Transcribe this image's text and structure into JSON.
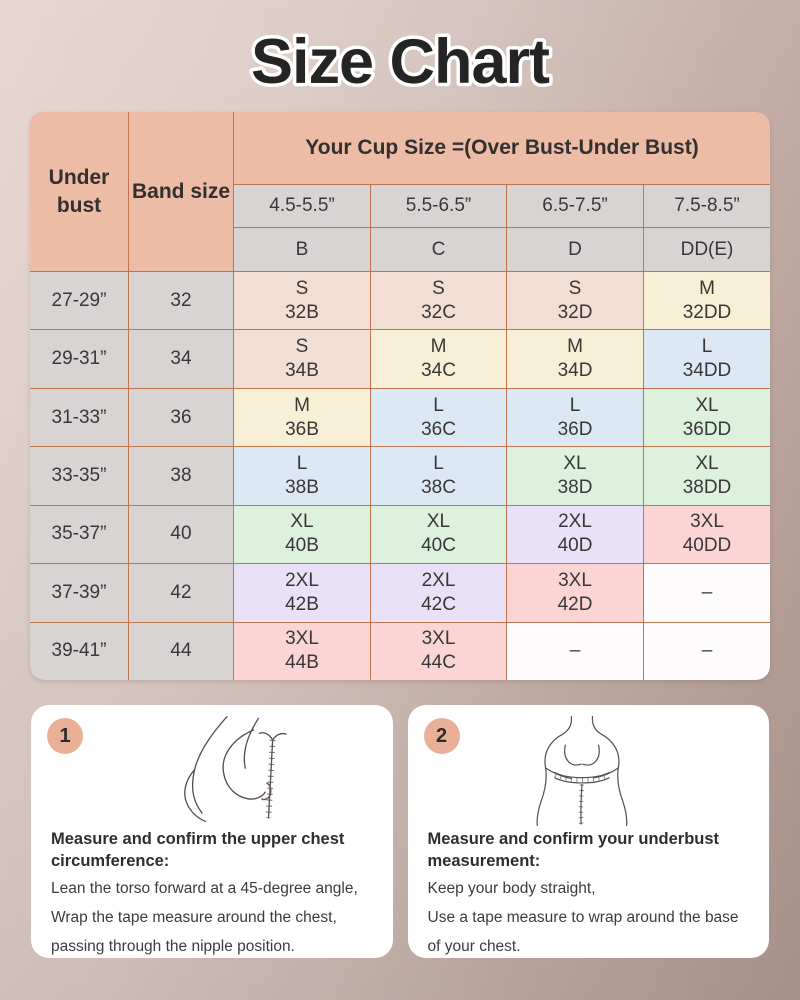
{
  "title": "Size Chart",
  "palette": {
    "header": "#edbca6",
    "gray": "#d7d4d3",
    "pink": "#f3ded4",
    "cream": "#f8efd7",
    "blue": "#dde8f5",
    "green": "#def1dd",
    "purple": "#e8e1f8",
    "red": "#fbd5d3",
    "empty": "#fdfbfb",
    "border": "#c1754e",
    "badge": "#e9b097",
    "card": "#ffffff",
    "title_color": "#242424"
  },
  "table": {
    "under_bust_header": "Under bust",
    "band_size_header": "Band size",
    "cup_header": "Your Cup Size =(Over Bust-Under Bust)",
    "bust_ranges": [
      "4.5-5.5”",
      "5.5-6.5”",
      "6.5-7.5”",
      "7.5-8.5”"
    ],
    "cup_letters": [
      "B",
      "C",
      "D",
      "DD(E)"
    ],
    "empty_mark": "–",
    "rows": [
      {
        "under_bust": "27-29”",
        "band_size": "32",
        "cells": [
          {
            "size": "S",
            "sku": "32B",
            "tone": "pink"
          },
          {
            "size": "S",
            "sku": "32C",
            "tone": "pink"
          },
          {
            "size": "S",
            "sku": "32D",
            "tone": "pink"
          },
          {
            "size": "M",
            "sku": "32DD",
            "tone": "cream"
          }
        ]
      },
      {
        "under_bust": "29-31”",
        "band_size": "34",
        "cells": [
          {
            "size": "S",
            "sku": "34B",
            "tone": "pink"
          },
          {
            "size": "M",
            "sku": "34C",
            "tone": "cream"
          },
          {
            "size": "M",
            "sku": "34D",
            "tone": "cream"
          },
          {
            "size": "L",
            "sku": "34DD",
            "tone": "blue"
          }
        ]
      },
      {
        "under_bust": "31-33”",
        "band_size": "36",
        "cells": [
          {
            "size": "M",
            "sku": "36B",
            "tone": "cream"
          },
          {
            "size": "L",
            "sku": "36C",
            "tone": "blue"
          },
          {
            "size": "L",
            "sku": "36D",
            "tone": "blue"
          },
          {
            "size": "XL",
            "sku": "36DD",
            "tone": "green"
          }
        ]
      },
      {
        "under_bust": "33-35”",
        "band_size": "38",
        "cells": [
          {
            "size": "L",
            "sku": "38B",
            "tone": "blue"
          },
          {
            "size": "L",
            "sku": "38C",
            "tone": "blue"
          },
          {
            "size": "XL",
            "sku": "38D",
            "tone": "green"
          },
          {
            "size": "XL",
            "sku": "38DD",
            "tone": "green"
          }
        ]
      },
      {
        "under_bust": "35-37”",
        "band_size": "40",
        "cells": [
          {
            "size": "XL",
            "sku": "40B",
            "tone": "green"
          },
          {
            "size": "XL",
            "sku": "40C",
            "tone": "green"
          },
          {
            "size": "2XL",
            "sku": "40D",
            "tone": "purple"
          },
          {
            "size": "3XL",
            "sku": "40DD",
            "tone": "red"
          }
        ]
      },
      {
        "under_bust": "37-39”",
        "band_size": "42",
        "cells": [
          {
            "size": "2XL",
            "sku": "42B",
            "tone": "purple"
          },
          {
            "size": "2XL",
            "sku": "42C",
            "tone": "purple"
          },
          {
            "size": "3XL",
            "sku": "42D",
            "tone": "red"
          },
          {
            "empty": true,
            "tone": "empty"
          }
        ]
      },
      {
        "under_bust": "39-41”",
        "band_size": "44",
        "cells": [
          {
            "size": "3XL",
            "sku": "44B",
            "tone": "red"
          },
          {
            "size": "3XL",
            "sku": "44C",
            "tone": "red"
          },
          {
            "empty": true,
            "tone": "empty"
          },
          {
            "empty": true,
            "tone": "empty"
          }
        ]
      }
    ]
  },
  "steps": [
    {
      "number": "1",
      "heading": "Measure and confirm the upper chest circumference:",
      "lines": [
        "Lean the torso forward at a 45-degree angle,",
        "Wrap the tape measure around the chest,",
        "passing through the nipple position."
      ]
    },
    {
      "number": "2",
      "heading": "Measure and confirm your underbust measurement:",
      "lines": [
        "Keep your body straight,",
        "Use a tape measure to wrap around the base of your chest."
      ]
    }
  ]
}
